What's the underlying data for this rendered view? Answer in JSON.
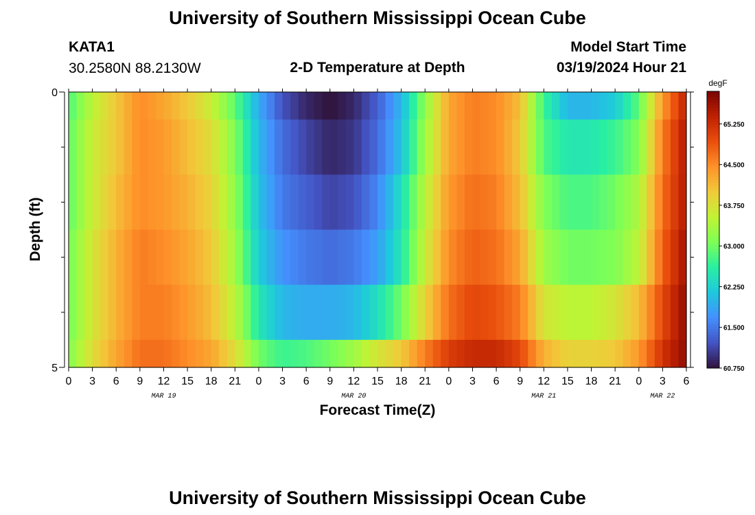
{
  "header": {
    "title": "University of Southern Mississippi Ocean Cube",
    "station_id": "KATA1",
    "station_coords": "30.2580N  88.2130W",
    "plot_title": "2-D Temperature at Depth",
    "model_start_label": "Model Start Time",
    "model_start_value": "03/19/2024 Hour 21"
  },
  "footer": {
    "title": "University of Southern Mississippi Ocean Cube"
  },
  "chart_data": {
    "type": "heatmap",
    "title": "2-D Temperature at Depth",
    "xlabel": "Forecast Time(Z)",
    "ylabel": "Depth (ft)",
    "x_tick_labels": [
      "0",
      "3",
      "6",
      "9",
      "12",
      "15",
      "18",
      "21",
      "0",
      "3",
      "6",
      "9",
      "12",
      "15",
      "18",
      "21",
      "0",
      "3",
      "6",
      "9",
      "12",
      "15",
      "18",
      "21",
      "0",
      "3",
      "6"
    ],
    "x_range_hours": [
      0,
      78
    ],
    "date_labels": [
      {
        "label": "MAR 19",
        "hour": 12
      },
      {
        "label": "MAR 20",
        "hour": 36
      },
      {
        "label": "MAR 21",
        "hour": 60
      },
      {
        "label": "MAR 22",
        "hour": 75
      }
    ],
    "y_range": [
      0,
      5
    ],
    "y_tick_labels": [
      "0",
      "5"
    ],
    "y_minor_ticks": 6,
    "colorbar": {
      "unit": "degF",
      "min": 60.75,
      "max": 65.85,
      "tick_labels": [
        "65.250",
        "64.500",
        "63.750",
        "63.000",
        "62.250",
        "61.500",
        "60.750"
      ],
      "tick_values": [
        65.25,
        64.5,
        63.75,
        63.0,
        62.25,
        61.5,
        60.75
      ],
      "colormap": [
        "#30123b",
        "#4454c4",
        "#4490fe",
        "#1fc8de",
        "#29efa2",
        "#7dff56",
        "#c1f334",
        "#f1ca3a",
        "#fe922a",
        "#ea4f0d",
        "#be2102",
        "#7a0403"
      ]
    },
    "layers": [
      {
        "depth_range": [
          0,
          0.5
        ],
        "keyframes": [
          [
            0,
            62.8
          ],
          [
            3,
            63.5
          ],
          [
            6,
            64.0
          ],
          [
            9,
            64.5
          ],
          [
            12,
            64.3
          ],
          [
            15,
            64.0
          ],
          [
            18,
            63.6
          ],
          [
            21,
            62.9
          ],
          [
            24,
            61.9
          ],
          [
            27,
            61.2
          ],
          [
            30,
            60.9
          ],
          [
            33,
            60.75
          ],
          [
            36,
            60.9
          ],
          [
            39,
            61.3
          ],
          [
            42,
            62.0
          ],
          [
            45,
            63.2
          ],
          [
            48,
            64.3
          ],
          [
            51,
            64.6
          ],
          [
            54,
            64.5
          ],
          [
            57,
            64.1
          ],
          [
            60,
            62.7
          ],
          [
            63,
            62.0
          ],
          [
            66,
            62.0
          ],
          [
            69,
            62.2
          ],
          [
            72,
            62.9
          ],
          [
            75,
            64.4
          ],
          [
            78,
            65.4
          ]
        ]
      },
      {
        "depth_range": [
          0.5,
          1.5
        ],
        "keyframes": [
          [
            0,
            62.9
          ],
          [
            3,
            63.6
          ],
          [
            6,
            64.0
          ],
          [
            9,
            64.5
          ],
          [
            12,
            64.4
          ],
          [
            15,
            64.1
          ],
          [
            18,
            63.8
          ],
          [
            21,
            63.1
          ],
          [
            24,
            62.0
          ],
          [
            27,
            61.4
          ],
          [
            30,
            61.1
          ],
          [
            33,
            60.9
          ],
          [
            36,
            61.0
          ],
          [
            39,
            61.4
          ],
          [
            42,
            62.1
          ],
          [
            45,
            63.3
          ],
          [
            48,
            64.3
          ],
          [
            51,
            64.6
          ],
          [
            54,
            64.5
          ],
          [
            57,
            64.0
          ],
          [
            60,
            62.8
          ],
          [
            63,
            62.5
          ],
          [
            66,
            62.5
          ],
          [
            69,
            62.7
          ],
          [
            72,
            63.1
          ],
          [
            75,
            64.6
          ],
          [
            78,
            65.5
          ]
        ]
      },
      {
        "depth_range": [
          1.5,
          2.5
        ],
        "keyframes": [
          [
            0,
            62.9
          ],
          [
            3,
            63.6
          ],
          [
            6,
            64.1
          ],
          [
            9,
            64.5
          ],
          [
            12,
            64.4
          ],
          [
            15,
            64.2
          ],
          [
            18,
            63.9
          ],
          [
            21,
            63.2
          ],
          [
            24,
            62.1
          ],
          [
            27,
            61.5
          ],
          [
            30,
            61.3
          ],
          [
            33,
            61.1
          ],
          [
            36,
            61.2
          ],
          [
            39,
            61.6
          ],
          [
            42,
            62.4
          ],
          [
            45,
            63.5
          ],
          [
            48,
            64.4
          ],
          [
            51,
            64.7
          ],
          [
            54,
            64.6
          ],
          [
            57,
            64.1
          ],
          [
            60,
            63.1
          ],
          [
            63,
            62.8
          ],
          [
            66,
            62.8
          ],
          [
            69,
            63.0
          ],
          [
            72,
            63.4
          ],
          [
            75,
            64.7
          ],
          [
            78,
            65.5
          ]
        ]
      },
      {
        "depth_range": [
          2.5,
          3.5
        ],
        "keyframes": [
          [
            0,
            63.0
          ],
          [
            3,
            63.7
          ],
          [
            6,
            64.2
          ],
          [
            9,
            64.6
          ],
          [
            12,
            64.5
          ],
          [
            15,
            64.3
          ],
          [
            18,
            64.0
          ],
          [
            21,
            63.3
          ],
          [
            24,
            62.2
          ],
          [
            27,
            61.7
          ],
          [
            30,
            61.5
          ],
          [
            33,
            61.4
          ],
          [
            36,
            61.5
          ],
          [
            39,
            61.8
          ],
          [
            42,
            62.5
          ],
          [
            45,
            63.6
          ],
          [
            48,
            64.5
          ],
          [
            51,
            64.8
          ],
          [
            54,
            64.7
          ],
          [
            57,
            64.3
          ],
          [
            60,
            63.3
          ],
          [
            63,
            63.0
          ],
          [
            66,
            63.0
          ],
          [
            69,
            63.1
          ],
          [
            72,
            63.5
          ],
          [
            75,
            64.8
          ],
          [
            78,
            65.6
          ]
        ]
      },
      {
        "depth_range": [
          3.5,
          4.5
        ],
        "keyframes": [
          [
            0,
            63.0
          ],
          [
            3,
            63.7
          ],
          [
            6,
            64.2
          ],
          [
            9,
            64.6
          ],
          [
            12,
            64.6
          ],
          [
            15,
            64.4
          ],
          [
            18,
            64.1
          ],
          [
            21,
            63.5
          ],
          [
            24,
            62.5
          ],
          [
            27,
            62.0
          ],
          [
            30,
            61.9
          ],
          [
            33,
            61.9
          ],
          [
            36,
            62.0
          ],
          [
            39,
            62.4
          ],
          [
            42,
            63.0
          ],
          [
            45,
            63.9
          ],
          [
            48,
            64.7
          ],
          [
            51,
            65.0
          ],
          [
            54,
            64.9
          ],
          [
            57,
            64.6
          ],
          [
            60,
            63.7
          ],
          [
            63,
            63.5
          ],
          [
            66,
            63.5
          ],
          [
            69,
            63.7
          ],
          [
            72,
            64.1
          ],
          [
            75,
            65.0
          ],
          [
            78,
            65.7
          ]
        ]
      },
      {
        "depth_range": [
          4.5,
          5
        ],
        "keyframes": [
          [
            0,
            63.1
          ],
          [
            3,
            63.8
          ],
          [
            6,
            64.3
          ],
          [
            9,
            64.7
          ],
          [
            12,
            64.7
          ],
          [
            15,
            64.5
          ],
          [
            18,
            64.3
          ],
          [
            21,
            63.8
          ],
          [
            24,
            63.0
          ],
          [
            27,
            62.7
          ],
          [
            30,
            62.8
          ],
          [
            33,
            63.0
          ],
          [
            36,
            63.3
          ],
          [
            39,
            63.7
          ],
          [
            42,
            64.0
          ],
          [
            45,
            64.6
          ],
          [
            48,
            65.1
          ],
          [
            51,
            65.3
          ],
          [
            54,
            65.3
          ],
          [
            57,
            65.0
          ],
          [
            60,
            64.2
          ],
          [
            63,
            63.9
          ],
          [
            66,
            63.9
          ],
          [
            69,
            64.0
          ],
          [
            72,
            64.4
          ],
          [
            75,
            65.2
          ],
          [
            78,
            65.7
          ]
        ]
      }
    ]
  }
}
